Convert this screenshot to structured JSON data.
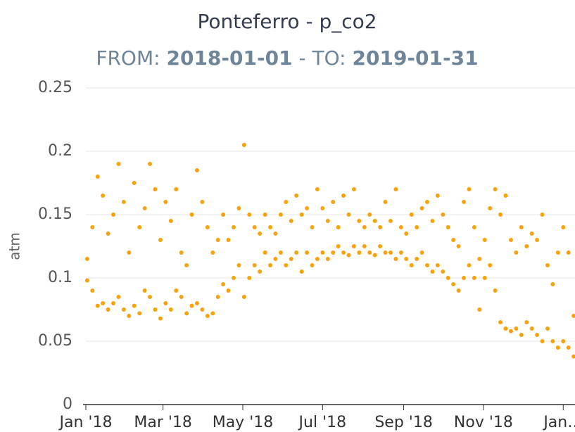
{
  "chart_data": {
    "type": "scatter",
    "title": "Ponteferro - p_co2",
    "subtitle": {
      "from_label": "FROM:",
      "from": "2018-01-01",
      "to_label": "- TO:",
      "to": "2019-01-31"
    },
    "y_label": "atm",
    "color": "#f7a30f",
    "xlim": [
      "2018-01-01",
      "2019-01-10"
    ],
    "xticks": [
      {
        "value": "2018-01-01",
        "label": "Jan '18"
      },
      {
        "value": "2018-03-01",
        "label": "Mar '18"
      },
      {
        "value": "2018-05-01",
        "label": "May '18"
      },
      {
        "value": "2018-07-01",
        "label": "Jul '18"
      },
      {
        "value": "2018-09-01",
        "label": "Sep '18"
      },
      {
        "value": "2018-11-01",
        "label": "Nov '18"
      },
      {
        "value": "2019-01-01",
        "label": "Jan…"
      }
    ],
    "ylim": [
      0,
      0.25
    ],
    "yticks": [
      0,
      0.05,
      0.1,
      0.15,
      0.2,
      0.25
    ],
    "grid": true,
    "x": [
      "2018-01-02",
      "2018-01-02",
      "2018-01-06",
      "2018-01-06",
      "2018-01-10",
      "2018-01-10",
      "2018-01-14",
      "2018-01-14",
      "2018-01-18",
      "2018-01-18",
      "2018-01-22",
      "2018-01-22",
      "2018-01-26",
      "2018-01-26",
      "2018-01-30",
      "2018-01-30",
      "2018-02-03",
      "2018-02-03",
      "2018-02-07",
      "2018-02-07",
      "2018-02-11",
      "2018-02-11",
      "2018-02-15",
      "2018-02-15",
      "2018-02-19",
      "2018-02-19",
      "2018-02-23",
      "2018-02-23",
      "2018-02-27",
      "2018-02-27",
      "2018-03-03",
      "2018-03-03",
      "2018-03-07",
      "2018-03-07",
      "2018-03-11",
      "2018-03-11",
      "2018-03-15",
      "2018-03-15",
      "2018-03-19",
      "2018-03-19",
      "2018-03-23",
      "2018-03-23",
      "2018-03-27",
      "2018-03-27",
      "2018-03-31",
      "2018-03-31",
      "2018-04-04",
      "2018-04-04",
      "2018-04-08",
      "2018-04-08",
      "2018-04-12",
      "2018-04-12",
      "2018-04-16",
      "2018-04-16",
      "2018-04-20",
      "2018-04-20",
      "2018-04-24",
      "2018-04-24",
      "2018-04-28",
      "2018-04-28",
      "2018-05-02",
      "2018-05-02",
      "2018-05-06",
      "2018-05-06",
      "2018-05-10",
      "2018-05-10",
      "2018-05-14",
      "2018-05-14",
      "2018-05-18",
      "2018-05-18",
      "2018-05-22",
      "2018-05-22",
      "2018-05-26",
      "2018-05-26",
      "2018-05-30",
      "2018-05-30",
      "2018-06-03",
      "2018-06-03",
      "2018-06-07",
      "2018-06-07",
      "2018-06-11",
      "2018-06-11",
      "2018-06-15",
      "2018-06-15",
      "2018-06-19",
      "2018-06-19",
      "2018-06-23",
      "2018-06-23",
      "2018-06-27",
      "2018-06-27",
      "2018-07-01",
      "2018-07-01",
      "2018-07-05",
      "2018-07-05",
      "2018-07-09",
      "2018-07-09",
      "2018-07-13",
      "2018-07-13",
      "2018-07-17",
      "2018-07-17",
      "2018-07-21",
      "2018-07-21",
      "2018-07-25",
      "2018-07-25",
      "2018-07-29",
      "2018-07-29",
      "2018-08-02",
      "2018-08-02",
      "2018-08-06",
      "2018-08-06",
      "2018-08-10",
      "2018-08-10",
      "2018-08-14",
      "2018-08-14",
      "2018-08-18",
      "2018-08-18",
      "2018-08-22",
      "2018-08-22",
      "2018-08-26",
      "2018-08-26",
      "2018-08-30",
      "2018-08-30",
      "2018-09-03",
      "2018-09-03",
      "2018-09-07",
      "2018-09-07",
      "2018-09-11",
      "2018-09-11",
      "2018-09-15",
      "2018-09-15",
      "2018-09-19",
      "2018-09-19",
      "2018-09-23",
      "2018-09-23",
      "2018-09-27",
      "2018-09-27",
      "2018-10-01",
      "2018-10-01",
      "2018-10-05",
      "2018-10-05",
      "2018-10-09",
      "2018-10-09",
      "2018-10-13",
      "2018-10-13",
      "2018-10-17",
      "2018-10-17",
      "2018-10-21",
      "2018-10-21",
      "2018-10-25",
      "2018-10-25",
      "2018-10-29",
      "2018-10-29",
      "2018-11-02",
      "2018-11-02",
      "2018-11-06",
      "2018-11-06",
      "2018-11-10",
      "2018-11-10",
      "2018-11-14",
      "2018-11-14",
      "2018-11-18",
      "2018-11-18",
      "2018-11-22",
      "2018-11-22",
      "2018-11-26",
      "2018-11-26",
      "2018-11-30",
      "2018-11-30",
      "2018-12-04",
      "2018-12-04",
      "2018-12-08",
      "2018-12-08",
      "2018-12-12",
      "2018-12-12",
      "2018-12-16",
      "2018-12-16",
      "2018-12-20",
      "2018-12-20",
      "2018-12-24",
      "2018-12-24",
      "2018-12-28",
      "2018-12-28",
      "2019-01-01",
      "2019-01-01",
      "2019-01-05",
      "2019-01-05",
      "2019-01-09",
      "2019-01-09"
    ],
    "values": [
      0.115,
      0.098,
      0.14,
      0.09,
      0.18,
      0.078,
      0.165,
      0.08,
      0.135,
      0.075,
      0.15,
      0.08,
      0.19,
      0.085,
      0.16,
      0.075,
      0.12,
      0.07,
      0.175,
      0.078,
      0.14,
      0.072,
      0.155,
      0.09,
      0.19,
      0.085,
      0.17,
      0.075,
      0.13,
      0.068,
      0.16,
      0.08,
      0.145,
      0.075,
      0.17,
      0.09,
      0.12,
      0.085,
      0.11,
      0.072,
      0.15,
      0.078,
      0.185,
      0.08,
      0.16,
      0.075,
      0.14,
      0.07,
      0.12,
      0.072,
      0.13,
      0.085,
      0.15,
      0.095,
      0.13,
      0.09,
      0.14,
      0.1,
      0.155,
      0.11,
      0.205,
      0.085,
      0.15,
      0.1,
      0.14,
      0.11,
      0.135,
      0.105,
      0.15,
      0.12,
      0.14,
      0.11,
      0.135,
      0.115,
      0.15,
      0.12,
      0.16,
      0.11,
      0.145,
      0.115,
      0.165,
      0.12,
      0.15,
      0.105,
      0.155,
      0.12,
      0.14,
      0.11,
      0.17,
      0.115,
      0.155,
      0.12,
      0.145,
      0.115,
      0.16,
      0.12,
      0.14,
      0.125,
      0.165,
      0.12,
      0.15,
      0.118,
      0.17,
      0.125,
      0.145,
      0.12,
      0.14,
      0.125,
      0.15,
      0.12,
      0.145,
      0.118,
      0.14,
      0.125,
      0.16,
      0.12,
      0.145,
      0.12,
      0.17,
      0.115,
      0.14,
      0.12,
      0.135,
      0.115,
      0.15,
      0.11,
      0.14,
      0.115,
      0.155,
      0.12,
      0.16,
      0.11,
      0.145,
      0.105,
      0.165,
      0.11,
      0.15,
      0.105,
      0.14,
      0.1,
      0.13,
      0.095,
      0.125,
      0.09,
      0.16,
      0.1,
      0.17,
      0.11,
      0.14,
      0.1,
      0.115,
      0.075,
      0.13,
      0.1,
      0.155,
      0.11,
      0.17,
      0.09,
      0.15,
      0.065,
      0.165,
      0.06,
      0.13,
      0.058,
      0.12,
      0.06,
      0.14,
      0.055,
      0.125,
      0.065,
      0.135,
      0.06,
      0.13,
      0.055,
      0.15,
      0.05,
      0.11,
      0.06,
      0.095,
      0.05,
      0.12,
      0.045,
      0.14,
      0.05,
      0.12,
      0.045,
      0.07,
      0.038
    ]
  }
}
